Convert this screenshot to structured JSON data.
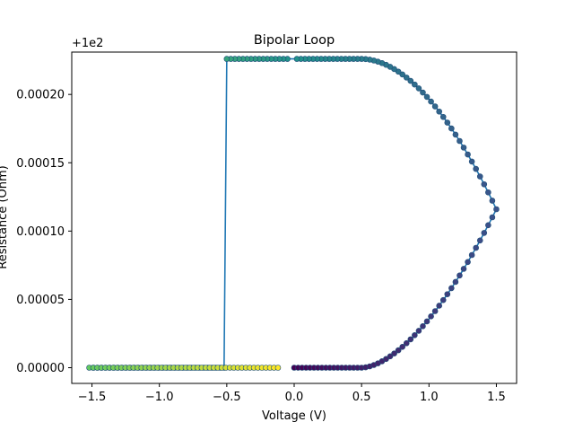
{
  "chart_data": {
    "type": "line",
    "title": "Bipolar Loop",
    "xlabel": "Voltage (V)",
    "ylabel": "Resistance (Ohm)",
    "y_offset_label": "+1e2",
    "xlim": [
      -1.65,
      1.65
    ],
    "ylim": [
      -1.15e-05,
      0.000231
    ],
    "x_ticks": [
      -1.5,
      -1.0,
      -0.5,
      0.0,
      0.5,
      1.0,
      1.5
    ],
    "x_tick_labels": [
      "−1.5",
      "−1.0",
      "−0.5",
      "0.0",
      "0.5",
      "1.0",
      "1.5"
    ],
    "y_ticks": [
      0,
      5e-05,
      0.0001,
      0.00015,
      0.0002
    ],
    "y_tick_labels": [
      "0.00000",
      "0.00005",
      "0.00010",
      "0.00015",
      "0.00020"
    ],
    "line_color": "#1f77b4",
    "colormap": "viridis",
    "grid": false,
    "series": [
      {
        "segments": [
          {
            "x": [
              0.0,
              0.5
            ],
            "y": [
              0.0,
              0.0
            ]
          },
          {
            "x": [
              0.5,
              1.5
            ],
            "y": [
              0.0,
              0.000116
            ]
          },
          {
            "x": [
              1.5,
              0.5
            ],
            "y": [
              0.000116,
              0.000226
            ]
          },
          {
            "x": [
              0.5,
              0.02
            ],
            "y": [
              0.000226,
              0.000226
            ]
          },
          {
            "x": [
              -0.02,
              -0.5
            ],
            "y": [
              0.000226,
              0.000226
            ]
          },
          {
            "x": [
              -0.5,
              -0.52
            ],
            "y": [
              0.000226,
              0.0
            ]
          },
          {
            "x": [
              -0.52,
              -1.52
            ],
            "y": [
              0.0,
              0.0
            ]
          },
          {
            "x": [
              -1.52,
              -0.12
            ],
            "y": [
              0.0,
              0.0
            ]
          }
        ]
      }
    ]
  }
}
